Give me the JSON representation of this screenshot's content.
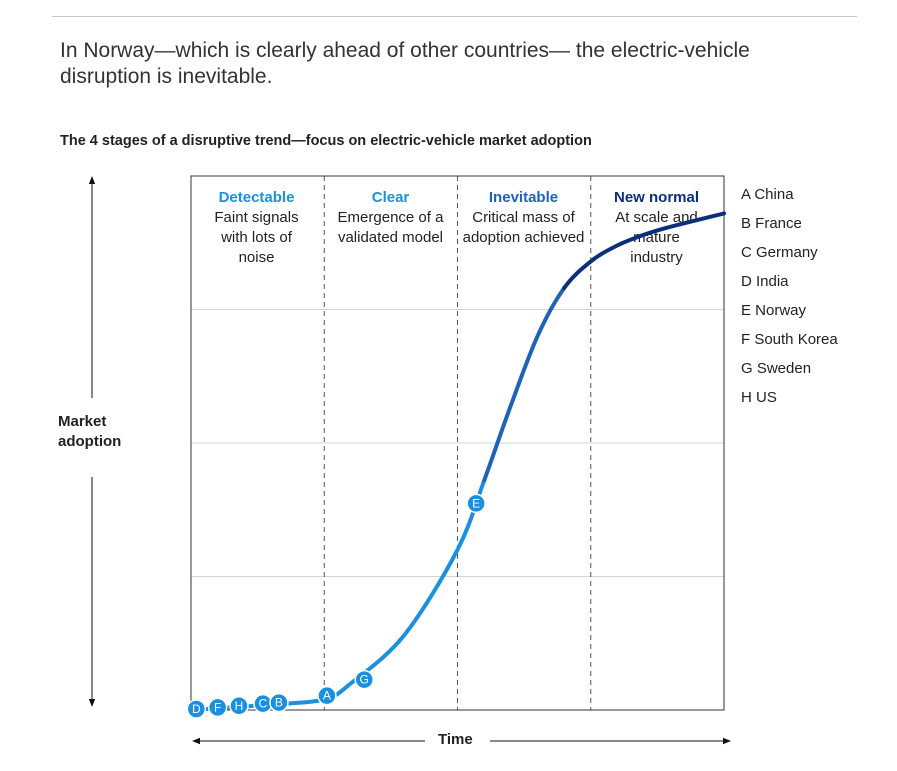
{
  "headline": "In Norway—which is clearly ahead of other countries— the electric-vehicle disruption is inevitable.",
  "chart_data": {
    "type": "line",
    "title": "The 4 stages of a disruptive trend—focus on electric-vehicle market adoption",
    "xlabel": "Time",
    "ylabel": "Market adoption",
    "grid": true,
    "stages": [
      {
        "name": "Detectable",
        "description": "Faint signals with lots of noise",
        "color": "#1b8fe0"
      },
      {
        "name": "Clear",
        "description": "Emergence of a validated model",
        "color": "#1b8fe0"
      },
      {
        "name": "Inevitable",
        "description": "Critical mass of adoption achieved",
        "color": "#1e63b8"
      },
      {
        "name": "New normal",
        "description": "At scale and mature industry",
        "color": "#0b2f7a"
      }
    ],
    "curve": {
      "x": [
        0,
        0.15,
        0.25,
        0.3,
        0.4,
        0.5,
        0.55,
        0.6,
        0.65,
        0.7,
        0.75,
        0.8,
        0.85,
        0.9,
        1.0
      ],
      "y": [
        0,
        0.01,
        0.02,
        0.05,
        0.14,
        0.3,
        0.43,
        0.57,
        0.7,
        0.79,
        0.84,
        0.87,
        0.89,
        0.905,
        0.93
      ]
    },
    "markers": [
      {
        "label": "D",
        "x": 0.01,
        "y": 0.0
      },
      {
        "label": "F",
        "x": 0.05,
        "y": 0.003
      },
      {
        "label": "H",
        "x": 0.09,
        "y": 0.006
      },
      {
        "label": "C",
        "x": 0.135,
        "y": 0.01
      },
      {
        "label": "B",
        "x": 0.165,
        "y": 0.012
      },
      {
        "label": "A",
        "x": 0.255,
        "y": 0.025
      },
      {
        "label": "G",
        "x": 0.325,
        "y": 0.055
      },
      {
        "label": "E",
        "x": 0.535,
        "y": 0.385
      }
    ],
    "legend": {
      "position": "right",
      "entries": [
        "A China",
        "B France",
        "C Germany",
        "D India",
        "E Norway",
        "F South Korea",
        "G Sweden",
        "H US"
      ]
    },
    "colors": {
      "light": "#1b8fe0",
      "mid": "#1e63b8",
      "dark": "#0b2f7a",
      "grid": "#d4d4d4",
      "frame": "#333333"
    }
  }
}
